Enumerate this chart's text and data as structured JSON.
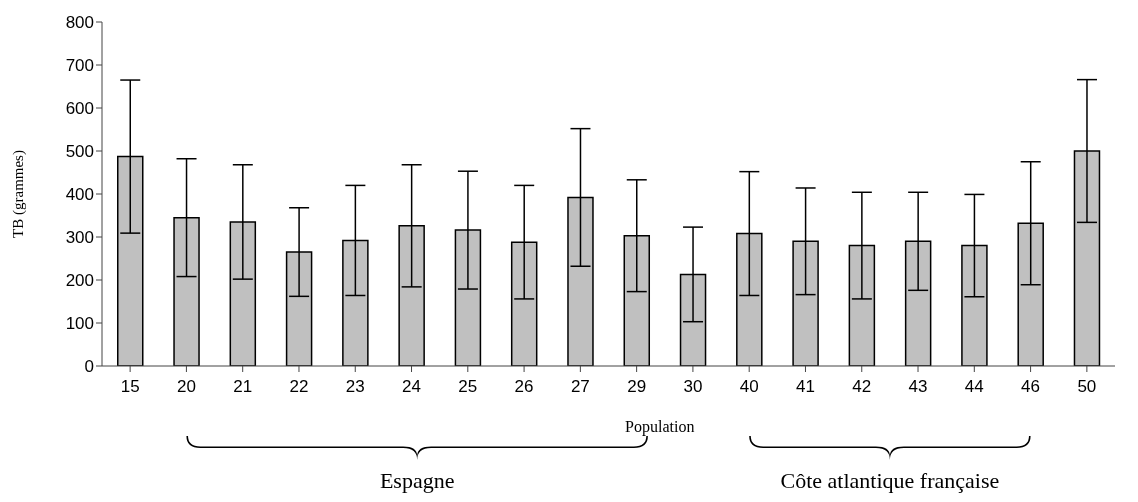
{
  "chart_data": {
    "type": "bar",
    "ylabel": "TB (grammes)",
    "xlabel": "Population",
    "categories": [
      "15",
      "20",
      "21",
      "22",
      "23",
      "24",
      "25",
      "26",
      "27",
      "29",
      "30",
      "40",
      "41",
      "42",
      "43",
      "44",
      "46",
      "50"
    ],
    "values": [
      487,
      345,
      335,
      265,
      292,
      326,
      316,
      288,
      392,
      303,
      213,
      308,
      290,
      280,
      290,
      280,
      332,
      500
    ],
    "errors": [
      178,
      137,
      133,
      103,
      128,
      142,
      137,
      132,
      160,
      130,
      110,
      144,
      124,
      124,
      114,
      119,
      143,
      166
    ],
    "color": "#c0c0c0",
    "ylim": [
      0,
      800
    ],
    "yticks": [
      0,
      100,
      200,
      300,
      400,
      500,
      600,
      700,
      800
    ],
    "grid": false,
    "legend": false,
    "annotations": [
      "Espagne",
      "Côte atlantique française"
    ]
  }
}
